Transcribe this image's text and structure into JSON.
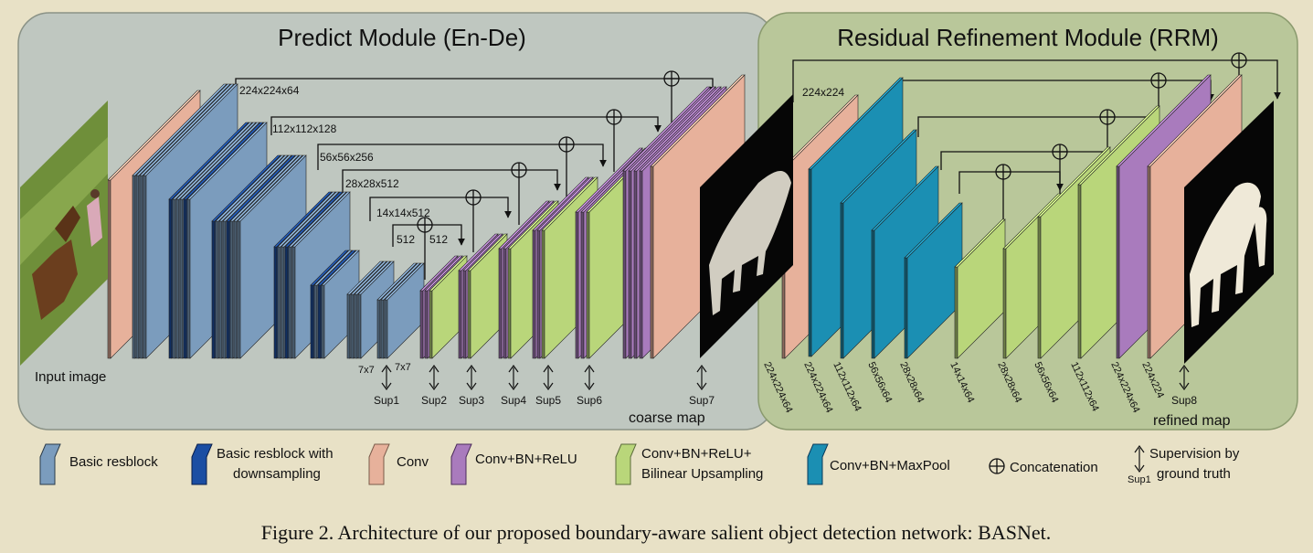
{
  "modules": {
    "predict_title": "Predict Module (En-De)",
    "rrm_title": "Residual Refinement Module (RRM)"
  },
  "labels": {
    "input_image": "Input image",
    "coarse_map": "coarse map",
    "refined_map": "refined map",
    "kernel_a": "7x7",
    "kernel_b": "7x7",
    "enc_sizes": [
      "224x224x64",
      "112x112x128",
      "56x56x256",
      "28x28x512",
      "14x14x512",
      "512",
      "512"
    ],
    "sups": [
      "Sup1",
      "Sup2",
      "Sup3",
      "Sup4",
      "Sup5",
      "Sup6",
      "Sup7",
      "Sup8"
    ],
    "rrm_top": "224x224",
    "rrm_dims": [
      "224x224x64",
      "224x224x64",
      "112x112x64",
      "56x56x64",
      "28x28x64",
      "14x14x64",
      "28x28x64",
      "56x56x64",
      "112x112x64",
      "224x224x64",
      "224x224"
    ]
  },
  "legend": {
    "basic_resblock": "Basic resblock",
    "resblock_down_1": "Basic resblock with",
    "resblock_down_2": "downsampling",
    "conv": "Conv",
    "conv_bn_relu": "Conv+BN+ReLU",
    "upsample_1": "Conv+BN+ReLU+",
    "upsample_2": "Bilinear Upsampling",
    "maxpool": "Conv+BN+MaxPool",
    "concat": "Concatenation",
    "sup_example": "Sup1",
    "supervision_1": "Supervision by",
    "supervision_2": "ground truth"
  },
  "caption": "Figure 2. Architecture of our proposed boundary-aware salient object detection network: BASNet.",
  "colors": {
    "background": "#e8e1c6",
    "predict_panel": "#bfc7c0",
    "rrm_panel": "#b9c79a",
    "resblock": "#7b9cbd",
    "resblock_down": "#1b4ea3",
    "conv": "#e7b19b",
    "conv_bn_relu": "#a97bbd",
    "upsample": "#b9d67a",
    "maxpool": "#1b8fb3"
  }
}
